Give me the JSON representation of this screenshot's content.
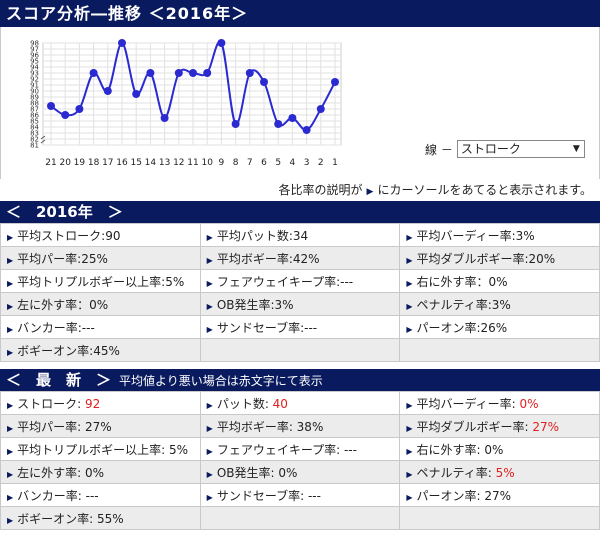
{
  "page_title": "スコア分析―推移 ＜2016年＞",
  "chart_data": {
    "type": "line",
    "x": [
      "21",
      "20",
      "19",
      "18",
      "17",
      "16",
      "15",
      "14",
      "13",
      "12",
      "11",
      "10",
      "9",
      "8",
      "7",
      "6",
      "5",
      "4",
      "3",
      "2",
      "1"
    ],
    "values": [
      87.5,
      86,
      87,
      93,
      90,
      98,
      89.5,
      93,
      85.5,
      93,
      93,
      93,
      98,
      84.5,
      93,
      91.5,
      84.5,
      85.5,
      83.5,
      87,
      91.5
    ],
    "y_ticks": [
      "81",
      "82",
      "83",
      "84",
      "85",
      "86",
      "87",
      "88",
      "89",
      "90",
      "91",
      "92",
      "93",
      "94",
      "95",
      "96",
      "97",
      "98"
    ],
    "ylim": [
      81,
      98
    ],
    "grid": true,
    "line_color": "#2a2ad0",
    "marker_color": "#2a2ad0"
  },
  "series_select": {
    "label": "線 －",
    "value": "ストローク"
  },
  "note": {
    "before": "各比率の説明が",
    "after": "にカーソールをあてると表示されます。"
  },
  "year_section": {
    "title": "＜　2016年　＞",
    "rows": [
      [
        {
          "text": "平均ストローク:90"
        },
        {
          "text": "平均パット数:34"
        },
        {
          "text": "平均バーディー率:3%"
        }
      ],
      [
        {
          "text": "平均パー率:25%"
        },
        {
          "text": "平均ボギー率:42%"
        },
        {
          "text": "平均ダブルボギー率:20%"
        }
      ],
      [
        {
          "text": "平均トリプルボギー以上率:5%"
        },
        {
          "text": "フェアウェイキープ率:---"
        },
        {
          "text": "右に外す率：0%"
        }
      ],
      [
        {
          "text": "左に外す率：0%"
        },
        {
          "text": "OB発生率:3%"
        },
        {
          "text": "ペナルティ率:3%"
        }
      ],
      [
        {
          "text": "バンカー率:---"
        },
        {
          "text": "サンドセーブ率:---"
        },
        {
          "text": "パーオン率:26%"
        }
      ],
      [
        {
          "text": "ボギーオン率:45%"
        },
        {
          "text": ""
        },
        {
          "text": ""
        }
      ]
    ]
  },
  "latest_section": {
    "title": "＜　最　新　＞",
    "subtitle": "平均値より悪い場合は赤文字にて表示",
    "rows": [
      [
        {
          "label": "ストローク: ",
          "value": "92",
          "red": true
        },
        {
          "label": "パット数: ",
          "value": "40",
          "red": true
        },
        {
          "label": "平均バーディー率: ",
          "value": "0%",
          "red": true
        }
      ],
      [
        {
          "label": "平均パー率: ",
          "value": "27%",
          "red": false
        },
        {
          "label": "平均ボギー率: ",
          "value": "38%",
          "red": false
        },
        {
          "label": "平均ダブルボギー率: ",
          "value": "27%",
          "red": true
        }
      ],
      [
        {
          "label": "平均トリプルボギー以上率: ",
          "value": "5%",
          "red": false
        },
        {
          "label": "フェアウェイキープ率: ",
          "value": "---",
          "red": false
        },
        {
          "label": "右に外す率: ",
          "value": "0%",
          "red": false
        }
      ],
      [
        {
          "label": "左に外す率: ",
          "value": "0%",
          "red": false
        },
        {
          "label": "OB発生率: ",
          "value": "0%",
          "red": false
        },
        {
          "label": "ペナルティ率: ",
          "value": "5%",
          "red": true
        }
      ],
      [
        {
          "label": "バンカー率: ",
          "value": "---",
          "red": false
        },
        {
          "label": "サンドセーブ率: ",
          "value": "---",
          "red": false
        },
        {
          "label": "パーオン率: ",
          "value": "27%",
          "red": false
        }
      ],
      [
        {
          "label": "ボギーオン率: ",
          "value": "55%",
          "red": false
        },
        {
          "label": "",
          "value": "",
          "red": false
        },
        {
          "label": "",
          "value": "",
          "red": false
        }
      ]
    ]
  }
}
